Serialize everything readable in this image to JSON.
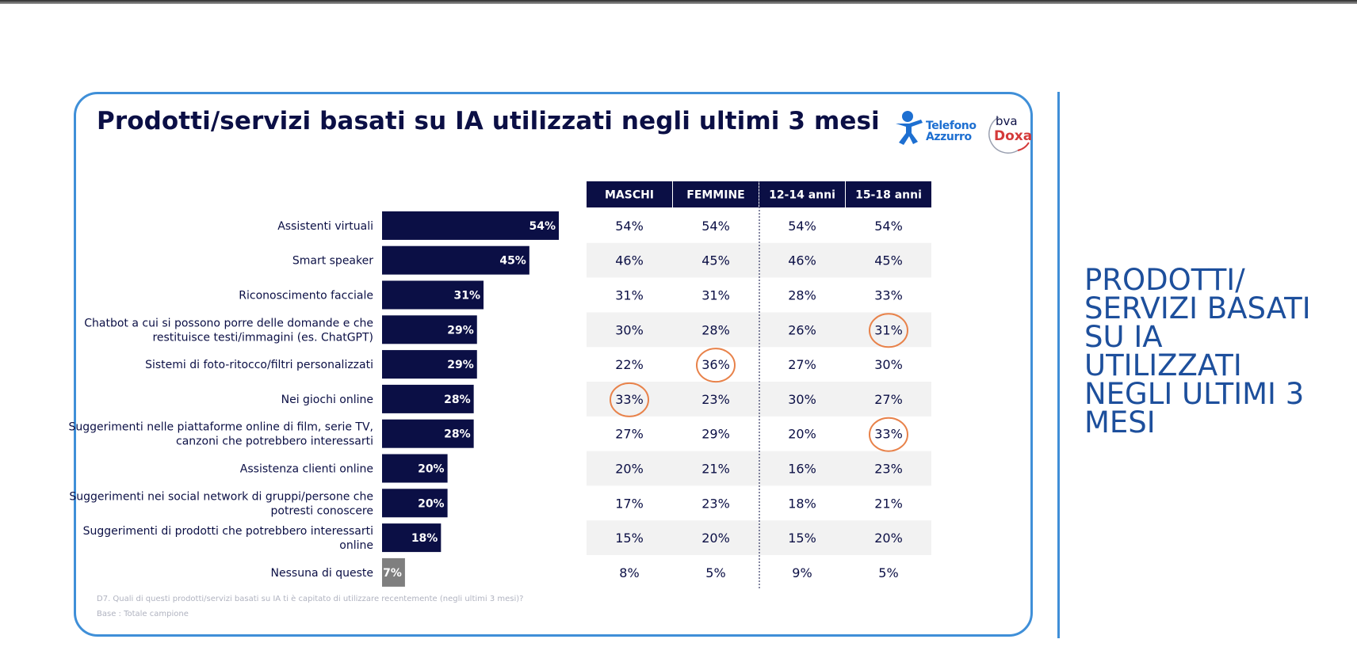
{
  "title": "Prodotti/servizi basati su IA utilizzati negli ultimi 3 mesi",
  "side_title": "PRODOTTI/ SERVIZI BASATI SU IA UTILIZZATI NEGLI ULTIMI 3 MESI",
  "logos": {
    "telefono_azzurro_line1": "Telefono",
    "telefono_azzurro_line2": "Azzurro",
    "bva": "bva",
    "doxa": "Doxa"
  },
  "footnotes": {
    "question": "D7. Quali di questi prodotti/servizi basati su IA ti è capitato di utilizzare recentemente (negli ultimi 3 mesi)?",
    "base": "Base : Totale campione"
  },
  "colors": {
    "bar": "#0b0f45",
    "bar_none": "#7f7f7f",
    "header": "#0b0f45",
    "stripe": "#f2f2f2",
    "highlight": "#e8824a"
  },
  "chart_data": {
    "type": "bar",
    "orientation": "horizontal",
    "categories": [
      [
        "Assistenti virtuali"
      ],
      [
        "Smart speaker"
      ],
      [
        "Riconoscimento facciale"
      ],
      [
        "Chatbot a cui si possono porre delle domande e che",
        "restituisce testi/immagini (es. ChatGPT)"
      ],
      [
        "Sistemi di foto-ritocco/filtri personalizzati"
      ],
      [
        "Nei giochi online"
      ],
      [
        "Suggerimenti nelle piattaforme online di film, serie TV,",
        "canzoni che potrebbero interessarti"
      ],
      [
        "Assistenza clienti online"
      ],
      [
        "Suggerimenti nei social network di gruppi/persone che",
        "potresti conoscere"
      ],
      [
        "Suggerimenti di prodotti che potrebbero interessarti",
        "online"
      ],
      [
        "Nessuna di queste"
      ]
    ],
    "values": [
      54,
      45,
      31,
      29,
      29,
      28,
      28,
      20,
      20,
      18,
      7
    ],
    "value_labels": [
      "54%",
      "45%",
      "31%",
      "29%",
      "29%",
      "28%",
      "28%",
      "20%",
      "20%",
      "18%",
      "7%"
    ],
    "table": {
      "columns": [
        "MASCHI",
        "FEMMINE",
        "12-14 anni",
        "15-18 anni"
      ],
      "rows": [
        [
          "54%",
          "54%",
          "54%",
          "54%"
        ],
        [
          "46%",
          "45%",
          "46%",
          "45%"
        ],
        [
          "31%",
          "31%",
          "28%",
          "33%"
        ],
        [
          "30%",
          "28%",
          "26%",
          "31%"
        ],
        [
          "22%",
          "36%",
          "27%",
          "30%"
        ],
        [
          "33%",
          "23%",
          "30%",
          "27%"
        ],
        [
          "27%",
          "29%",
          "20%",
          "33%"
        ],
        [
          "20%",
          "21%",
          "16%",
          "23%"
        ],
        [
          "17%",
          "23%",
          "18%",
          "21%"
        ],
        [
          "15%",
          "20%",
          "15%",
          "20%"
        ],
        [
          "8%",
          "5%",
          "9%",
          "5%"
        ]
      ],
      "highlighted": [
        [
          3,
          3
        ],
        [
          4,
          1
        ],
        [
          5,
          0
        ],
        [
          6,
          3
        ]
      ]
    }
  }
}
